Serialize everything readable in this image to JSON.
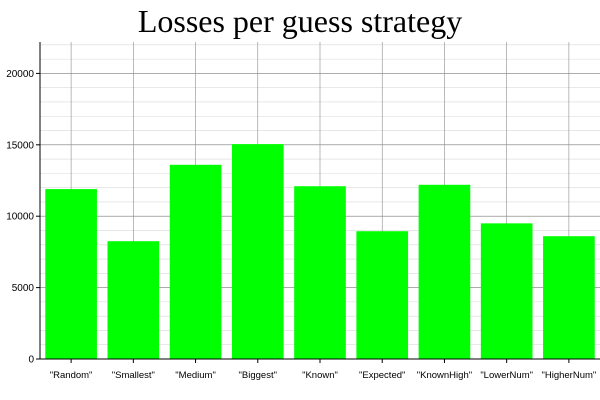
{
  "chart_data": {
    "type": "bar",
    "title": "Losses per guess strategy",
    "xlabel": "",
    "ylabel": "",
    "categories": [
      "\"Random\"",
      "\"Smallest\"",
      "\"Medium\"",
      "\"Biggest\"",
      "\"Known\"",
      "\"Expected\"",
      "\"KnownHigh\"",
      "\"LowerNum\"",
      "\"HigherNum\""
    ],
    "values": [
      11900,
      8250,
      13600,
      15050,
      12100,
      8950,
      12200,
      9500,
      8600
    ],
    "ylim": [
      0,
      22200
    ],
    "yticks": [
      0,
      5000,
      10000,
      15000,
      20000
    ],
    "yticks_labels": [
      "0",
      "5000",
      "10000",
      "15000",
      "20000"
    ],
    "grid": true,
    "bar_color": "#00ff00"
  }
}
